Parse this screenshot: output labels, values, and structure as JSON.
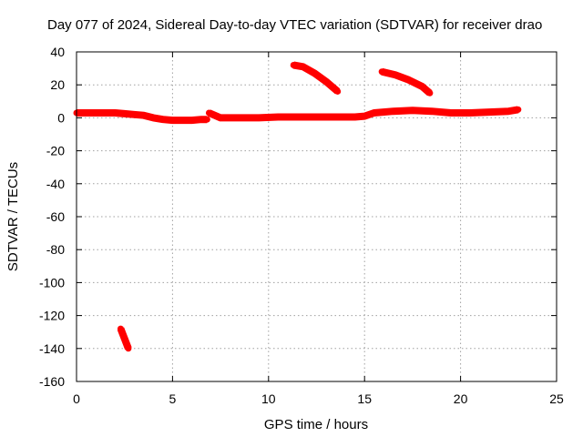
{
  "chart_data": {
    "type": "line",
    "title": "Day 077 of 2024, Sidereal Day-to-day VTEC variation (SDTVAR) for receiver drao",
    "xlabel": "GPS time / hours",
    "ylabel": "SDTVAR / TECUs",
    "xlim": [
      0,
      25
    ],
    "ylim": [
      -160,
      40
    ],
    "xticks": [
      "0",
      "5",
      "10",
      "15",
      "20",
      "25"
    ],
    "yticks": [
      "-160",
      "-140",
      "-120",
      "-100",
      "-80",
      "-60",
      "-40",
      "-20",
      "0",
      "20",
      "40"
    ],
    "grid": true,
    "color": "#ff0000",
    "series": [
      {
        "name": "segment-1",
        "x": [
          0.0,
          1.0,
          2.0,
          2.5,
          3.0,
          3.5,
          4.0,
          4.5,
          5.0,
          5.5,
          6.0,
          6.5,
          6.8
        ],
        "y": [
          3,
          3,
          3,
          2.5,
          2,
          1.5,
          0,
          -1,
          -1.5,
          -1.5,
          -1.5,
          -1,
          -1
        ]
      },
      {
        "name": "segment-2",
        "x": [
          6.9,
          7.5,
          8.5,
          9.5,
          10.5,
          11.5,
          12.5,
          13.5,
          14.5,
          15.0,
          15.5,
          16.5,
          17.5,
          18.5,
          19.5,
          20.5,
          21.5,
          22.5,
          23.0
        ],
        "y": [
          3,
          0,
          0,
          0,
          0.5,
          0.5,
          0.5,
          0.5,
          0.5,
          1,
          3,
          4,
          4.5,
          4,
          3,
          3,
          3.5,
          4,
          5
        ]
      },
      {
        "name": "segment-3",
        "x": [
          11.3,
          11.8,
          12.4,
          13.0,
          13.6
        ],
        "y": [
          32,
          31,
          27,
          22,
          16
        ]
      },
      {
        "name": "segment-4",
        "x": [
          15.9,
          16.6,
          17.3,
          18.0,
          18.4
        ],
        "y": [
          28,
          26,
          23,
          19,
          15
        ]
      },
      {
        "name": "segment-5",
        "x": [
          2.3,
          2.5,
          2.7
        ],
        "y": [
          -128,
          -134,
          -140
        ]
      }
    ]
  }
}
